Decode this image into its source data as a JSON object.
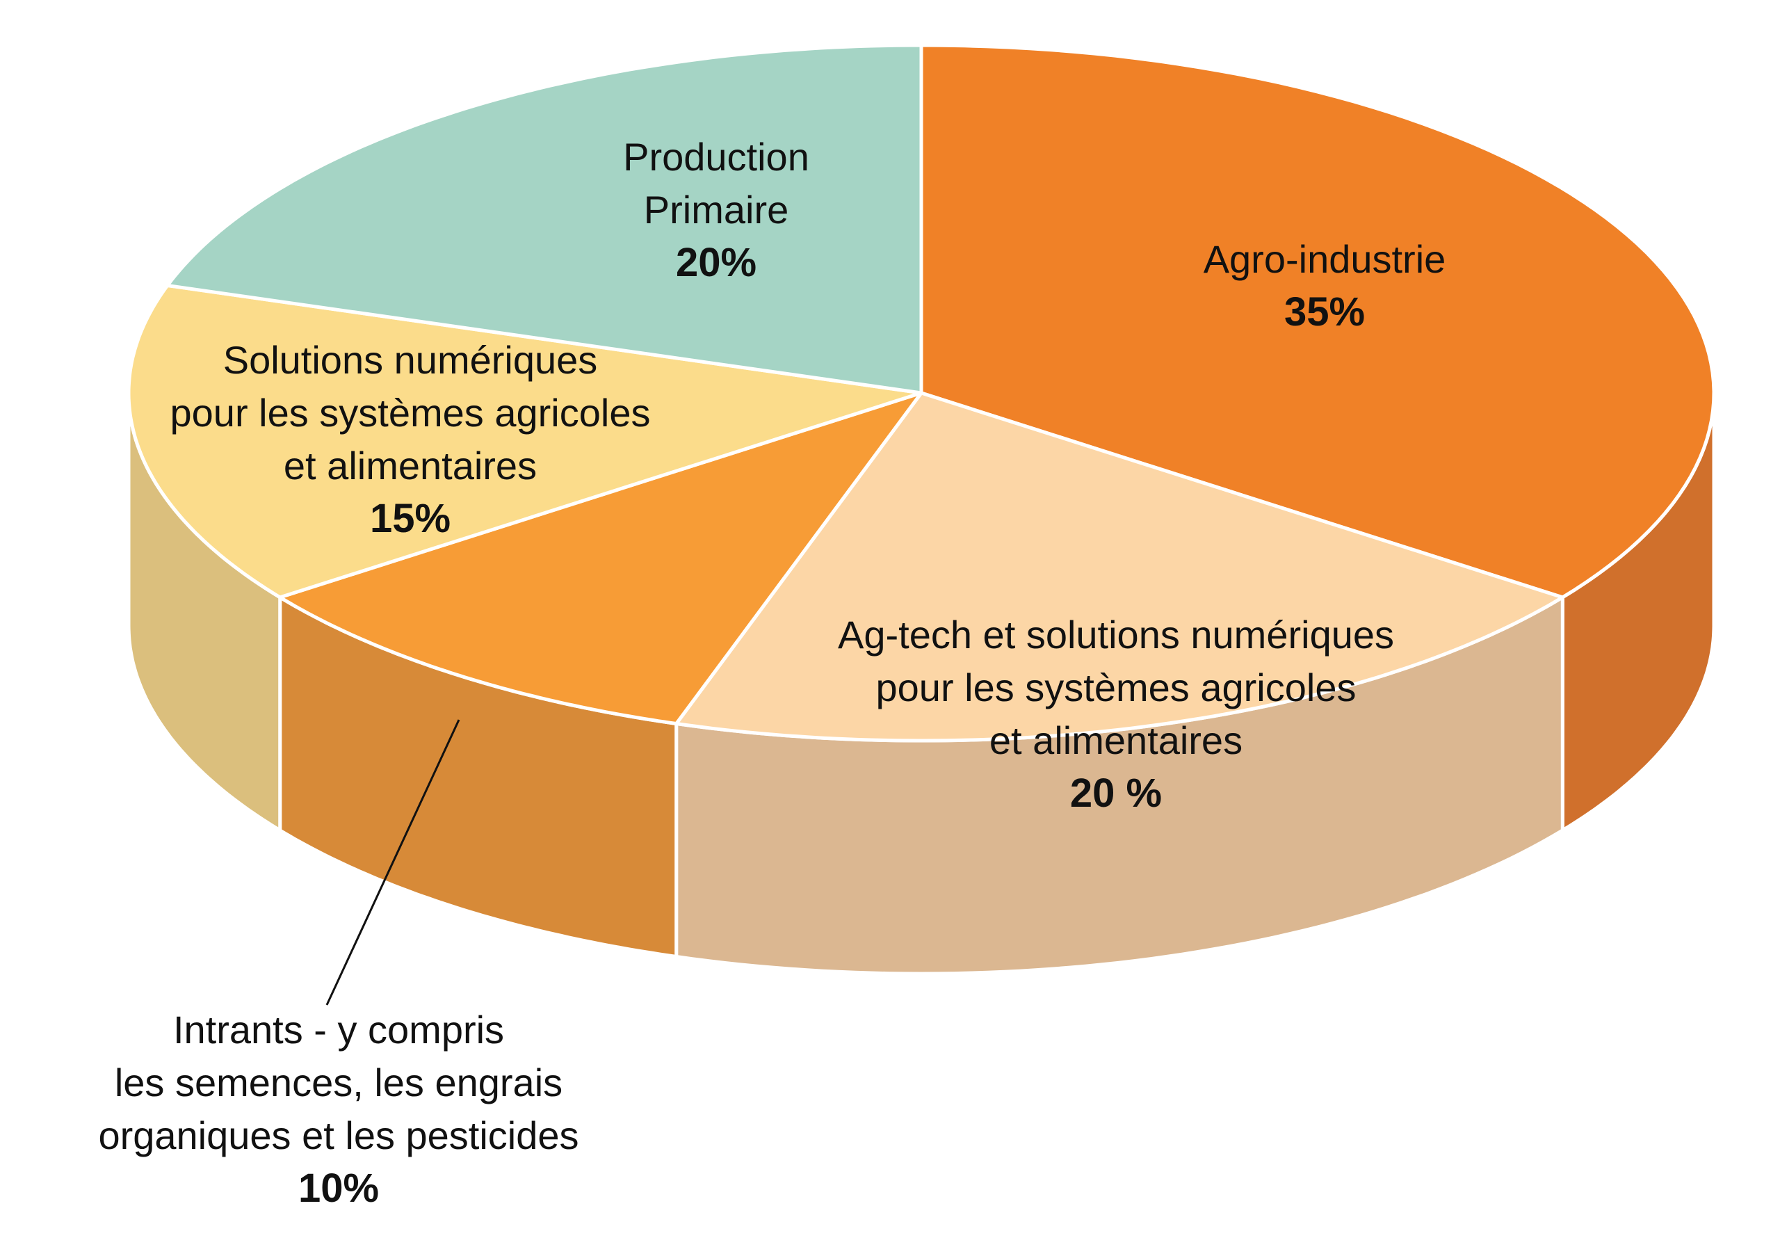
{
  "chart_data": {
    "type": "pie",
    "style": "3d",
    "slices": [
      {
        "name": "agro-industrie",
        "label_lines": [
          "Agro-industrie"
        ],
        "value_label": "35%",
        "value": 35,
        "color": "#F08127",
        "side_color": "#D0702C"
      },
      {
        "name": "ag-tech",
        "label_lines": [
          "Ag-tech et solutions numériques",
          "pour les systèmes agricoles",
          "et alimentaires"
        ],
        "value_label": "20 %",
        "value": 20,
        "color": "#FCD6A6",
        "side_color": "#DBB791"
      },
      {
        "name": "intrants",
        "label_lines": [
          "Intrants - y compris",
          "les semences,  les engrais",
          "organiques et les pesticides"
        ],
        "value_label": "10%",
        "value": 10,
        "color": "#F79C36",
        "side_color": "#D78A38",
        "callout": true
      },
      {
        "name": "solutions-numeriques",
        "label_lines": [
          "Solutions numériques",
          "pour les systèmes agricoles",
          "et alimentaires"
        ],
        "value_label": "15%",
        "value": 15,
        "color": "#FBDC8B",
        "side_color": "#DBBF7D"
      },
      {
        "name": "production-primaire",
        "label_lines": [
          "Production",
          "Primaire"
        ],
        "value_label": "20%",
        "value": 20,
        "color": "#A5D4C5",
        "side_color": "#8FB8AA"
      }
    ]
  }
}
